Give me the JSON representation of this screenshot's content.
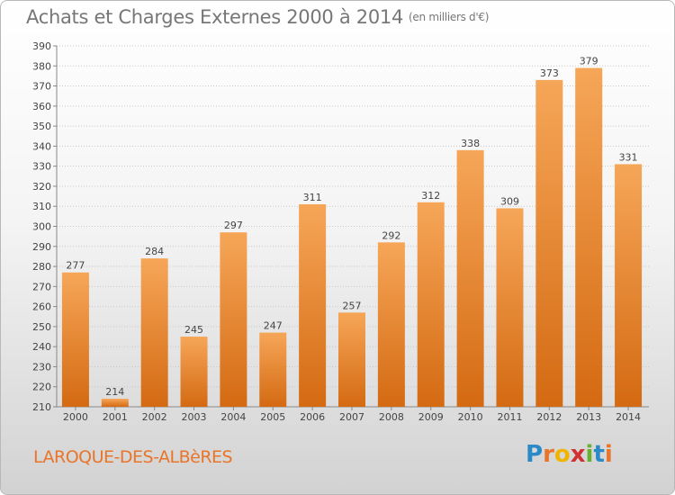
{
  "header": {
    "title": "Achats et Charges Externes 2000 à 2014",
    "subtitle": "(en milliers d'€)"
  },
  "footer": {
    "city": "LAROQUE-DES-ALBèRES",
    "logo": {
      "letters": [
        "P",
        "r",
        "o",
        "x",
        "i",
        "t",
        "i"
      ],
      "colors": [
        "#2a8ac8",
        "#e8752a",
        "#f0b400",
        "#d03030",
        "#6ab030",
        "#2a8ac8",
        "#e8752a"
      ]
    }
  },
  "colors": {
    "bar_light": "#f6a658",
    "bar_dark": "#d46a12",
    "accent": "#e8752a",
    "text": "#555555"
  },
  "chart_data": {
    "type": "bar",
    "title": "Achats et Charges Externes 2000 à 2014",
    "subtitle": "(en milliers d'€)",
    "categories": [
      "2000",
      "2001",
      "2002",
      "2003",
      "2004",
      "2005",
      "2006",
      "2007",
      "2008",
      "2009",
      "2010",
      "2011",
      "2012",
      "2013",
      "2014"
    ],
    "values": [
      277,
      214,
      284,
      245,
      297,
      247,
      311,
      257,
      292,
      312,
      338,
      309,
      373,
      379,
      331
    ],
    "ylim": [
      210,
      390
    ],
    "yticks": [
      210,
      220,
      230,
      240,
      250,
      260,
      270,
      280,
      290,
      300,
      310,
      320,
      330,
      340,
      350,
      360,
      370,
      380,
      390
    ],
    "grid": true,
    "data_labels": true
  }
}
